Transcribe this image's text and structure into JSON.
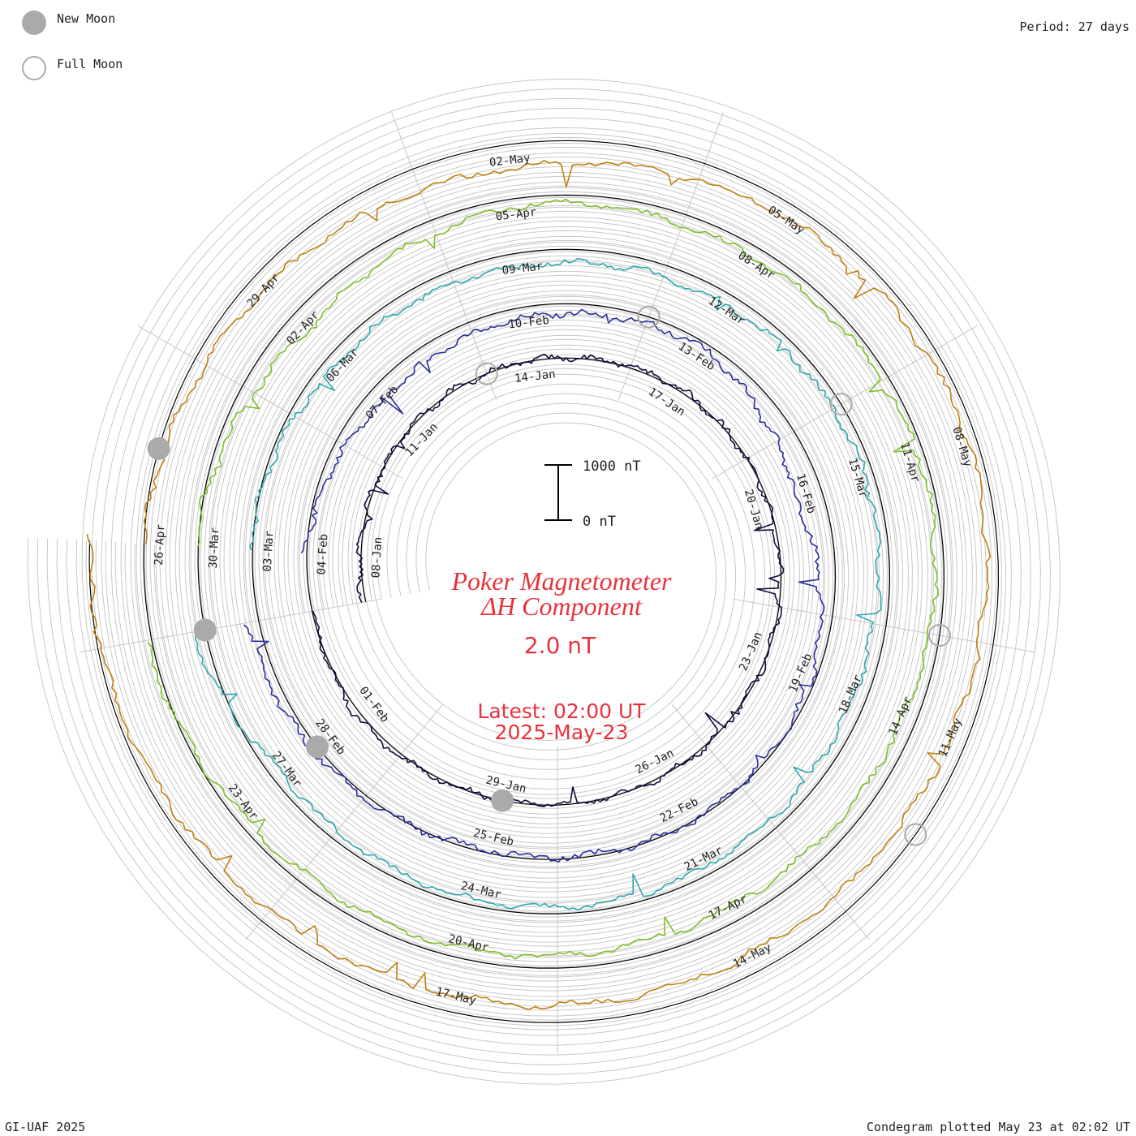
{
  "legend": {
    "new_moon_label": "New Moon",
    "full_moon_label": "Full Moon",
    "new_moon_color": "#aaaaaa",
    "full_moon_color": "#aaaaaa"
  },
  "period_label": "Period: 27 days",
  "credit": "GI-UAF 2025",
  "plotted_note": "Condegram plotted May 23 at 02:02 UT",
  "scale_bar": {
    "top_label": "1000 nT",
    "bottom_label": "0 nT",
    "value_nT": 1000
  },
  "center": {
    "title_line1": "Poker Magnetometer",
    "title_line2": "ΔH Component",
    "current_value": "2.0 nT",
    "latest_line1": "Latest: 02:00 UT",
    "latest_line2": "2025-May-23",
    "color": "#e8323c"
  },
  "chart_data": {
    "type": "line",
    "subtype": "spiral condegram",
    "period_days": 27,
    "start_date": "2025-01-07",
    "end_date": "2025-05-23",
    "units": "nT",
    "series": [
      {
        "name": "",
        "color": "#160a3c",
        "x": [
          "2025-01-07",
          "2025-01-08",
          "2025-01-11",
          "2025-01-14",
          "2025-01-17",
          "2025-01-20",
          "2025-01-23",
          "2025-01-26",
          "2025-01-29",
          "2025-02-01",
          "2025-02-03"
        ],
        "values": [
          60,
          20,
          10,
          0,
          40,
          -30,
          0,
          10,
          -20,
          80,
          -40
        ]
      },
      {
        "name": "",
        "color": "#2a2f9c",
        "x": [
          "2025-02-04",
          "2025-02-07",
          "2025-02-10",
          "2025-02-13",
          "2025-02-16",
          "2025-02-19",
          "2025-02-22",
          "2025-02-25",
          "2025-02-28",
          "2025-03-02"
        ],
        "values": [
          20,
          -300,
          -200,
          -100,
          -500,
          -80,
          0,
          -60,
          100,
          200
        ]
      },
      {
        "name": "",
        "color": "#2ea8b0",
        "x": [
          "2025-03-03",
          "2025-03-06",
          "2025-03-09",
          "2025-03-12",
          "2025-03-15",
          "2025-03-18",
          "2025-03-21",
          "2025-03-24",
          "2025-03-27",
          "2025-03-29"
        ],
        "values": [
          40,
          -200,
          -250,
          -200,
          -150,
          -250,
          -150,
          -100,
          -200,
          200
        ]
      },
      {
        "name": "",
        "color": "#7fbf2a",
        "x": [
          "2025-03-30",
          "2025-04-02",
          "2025-04-05",
          "2025-04-08",
          "2025-04-11",
          "2025-04-14",
          "2025-04-17",
          "2025-04-20",
          "2025-04-23",
          "2025-04-25"
        ],
        "values": [
          60,
          -400,
          -150,
          -200,
          -100,
          -250,
          -300,
          -200,
          -150,
          100
        ]
      },
      {
        "name": "",
        "color": "#c08010",
        "x": [
          "2025-04-26",
          "2025-04-29",
          "2025-05-02",
          "2025-05-05",
          "2025-05-08",
          "2025-05-11",
          "2025-05-14",
          "2025-05-17",
          "2025-05-20",
          "2025-05-23"
        ],
        "values": [
          0,
          -300,
          -450,
          -250,
          -150,
          -300,
          -350,
          -300,
          -200,
          2
        ]
      }
    ],
    "new_moons": [
      "2025-01-29",
      "2025-02-28",
      "2025-03-29",
      "2025-04-27"
    ],
    "full_moons": [
      "2025-01-13",
      "2025-02-12",
      "2025-03-14",
      "2025-04-13",
      "2025-05-12"
    ],
    "date_labels": [
      "08-Jan",
      "11-Jan",
      "14-Jan",
      "17-Jan",
      "20-Jan",
      "23-Jan",
      "26-Jan",
      "29-Jan",
      "01-Feb",
      "04-Feb",
      "07-Feb",
      "10-Feb",
      "13-Feb",
      "16-Feb",
      "19-Feb",
      "22-Feb",
      "25-Feb",
      "28-Feb",
      "03-Mar",
      "06-Mar",
      "09-Mar",
      "12-Mar",
      "15-Mar",
      "18-Mar",
      "21-Mar",
      "24-Mar",
      "27-Mar",
      "30-Mar",
      "02-Apr",
      "05-Apr",
      "08-Apr",
      "11-Apr",
      "14-Apr",
      "17-Apr",
      "20-Apr",
      "23-Apr",
      "26-Apr",
      "29-Apr",
      "02-May",
      "05-May",
      "08-May",
      "11-May",
      "14-May",
      "17-May"
    ]
  }
}
